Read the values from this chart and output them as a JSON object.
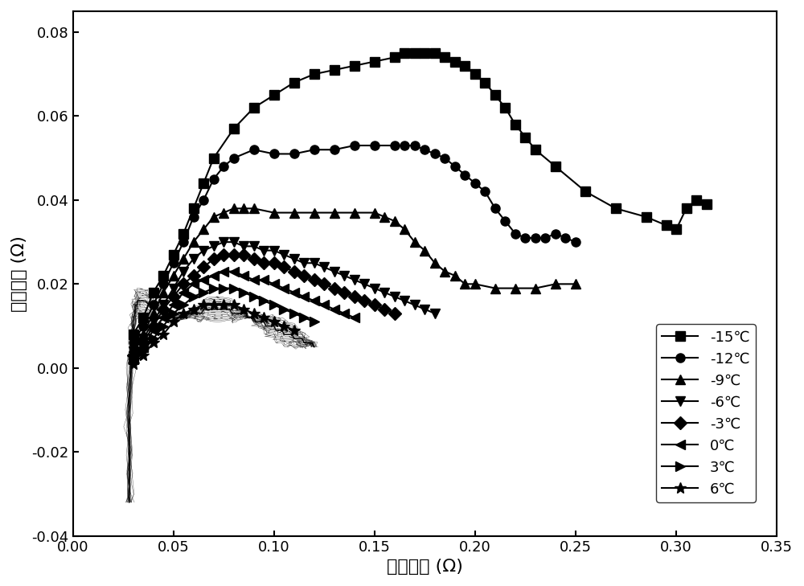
{
  "title": "",
  "xlabel": "阻抗实部 (Ω)",
  "ylabel": "阻抗虚部 (Ω)",
  "xlim": [
    0.0,
    0.35
  ],
  "ylim": [
    -0.04,
    0.085
  ],
  "xticks": [
    0.0,
    0.05,
    0.1,
    0.15,
    0.2,
    0.25,
    0.3,
    0.35
  ],
  "yticks": [
    -0.04,
    -0.02,
    0.0,
    0.02,
    0.04,
    0.06,
    0.08
  ],
  "legend_labels": [
    "-15℃",
    "-12℃",
    "-9℃",
    "-6℃",
    "-3℃",
    "0℃",
    "3℃",
    "6℃"
  ],
  "series": [
    {
      "label": "-15℃",
      "marker": "s",
      "x": [
        0.03,
        0.035,
        0.04,
        0.045,
        0.05,
        0.055,
        0.06,
        0.065,
        0.07,
        0.08,
        0.09,
        0.1,
        0.11,
        0.12,
        0.13,
        0.14,
        0.15,
        0.16,
        0.165,
        0.17,
        0.175,
        0.18,
        0.185,
        0.19,
        0.195,
        0.2,
        0.205,
        0.21,
        0.215,
        0.22,
        0.225,
        0.23,
        0.24,
        0.255,
        0.27,
        0.285,
        0.295,
        0.3,
        0.305,
        0.31,
        0.315
      ],
      "y": [
        0.008,
        0.012,
        0.018,
        0.022,
        0.027,
        0.032,
        0.038,
        0.044,
        0.05,
        0.057,
        0.062,
        0.065,
        0.068,
        0.07,
        0.071,
        0.072,
        0.073,
        0.074,
        0.075,
        0.075,
        0.075,
        0.075,
        0.074,
        0.073,
        0.072,
        0.07,
        0.068,
        0.065,
        0.062,
        0.058,
        0.055,
        0.052,
        0.048,
        0.042,
        0.038,
        0.036,
        0.034,
        0.033,
        0.038,
        0.04,
        0.039
      ]
    },
    {
      "label": "-12℃",
      "marker": "o",
      "x": [
        0.03,
        0.035,
        0.04,
        0.045,
        0.05,
        0.055,
        0.06,
        0.065,
        0.07,
        0.075,
        0.08,
        0.09,
        0.1,
        0.11,
        0.12,
        0.13,
        0.14,
        0.15,
        0.16,
        0.165,
        0.17,
        0.175,
        0.18,
        0.185,
        0.19,
        0.195,
        0.2,
        0.205,
        0.21,
        0.215,
        0.22,
        0.225,
        0.23,
        0.235,
        0.24,
        0.245,
        0.25
      ],
      "y": [
        0.006,
        0.01,
        0.015,
        0.02,
        0.025,
        0.03,
        0.036,
        0.04,
        0.045,
        0.048,
        0.05,
        0.052,
        0.051,
        0.051,
        0.052,
        0.052,
        0.053,
        0.053,
        0.053,
        0.053,
        0.053,
        0.052,
        0.051,
        0.05,
        0.048,
        0.046,
        0.044,
        0.042,
        0.038,
        0.035,
        0.032,
        0.031,
        0.031,
        0.031,
        0.032,
        0.031,
        0.03
      ]
    },
    {
      "label": "-9℃",
      "marker": "^",
      "x": [
        0.03,
        0.035,
        0.04,
        0.045,
        0.05,
        0.055,
        0.06,
        0.065,
        0.07,
        0.075,
        0.08,
        0.085,
        0.09,
        0.1,
        0.11,
        0.12,
        0.13,
        0.14,
        0.15,
        0.155,
        0.16,
        0.165,
        0.17,
        0.175,
        0.18,
        0.185,
        0.19,
        0.195,
        0.2,
        0.21,
        0.22,
        0.23,
        0.24,
        0.25
      ],
      "y": [
        0.005,
        0.008,
        0.013,
        0.018,
        0.022,
        0.026,
        0.03,
        0.033,
        0.036,
        0.037,
        0.038,
        0.038,
        0.038,
        0.037,
        0.037,
        0.037,
        0.037,
        0.037,
        0.037,
        0.036,
        0.035,
        0.033,
        0.03,
        0.028,
        0.025,
        0.023,
        0.022,
        0.02,
        0.02,
        0.019,
        0.019,
        0.019,
        0.02,
        0.02
      ]
    },
    {
      "label": "-6℃",
      "marker": "v",
      "x": [
        0.03,
        0.035,
        0.04,
        0.045,
        0.05,
        0.055,
        0.06,
        0.065,
        0.07,
        0.075,
        0.08,
        0.085,
        0.09,
        0.095,
        0.1,
        0.105,
        0.11,
        0.115,
        0.12,
        0.125,
        0.13,
        0.135,
        0.14,
        0.145,
        0.15,
        0.155,
        0.16,
        0.165,
        0.17,
        0.175,
        0.18
      ],
      "y": [
        0.004,
        0.007,
        0.011,
        0.015,
        0.019,
        0.023,
        0.026,
        0.028,
        0.029,
        0.03,
        0.03,
        0.029,
        0.029,
        0.028,
        0.028,
        0.027,
        0.026,
        0.025,
        0.025,
        0.024,
        0.023,
        0.022,
        0.021,
        0.02,
        0.019,
        0.018,
        0.017,
        0.016,
        0.015,
        0.014,
        0.013
      ]
    },
    {
      "label": "-3℃",
      "marker": "D",
      "x": [
        0.03,
        0.035,
        0.04,
        0.045,
        0.05,
        0.055,
        0.06,
        0.065,
        0.07,
        0.075,
        0.08,
        0.085,
        0.09,
        0.095,
        0.1,
        0.105,
        0.11,
        0.115,
        0.12,
        0.125,
        0.13,
        0.135,
        0.14,
        0.145,
        0.15,
        0.155,
        0.16
      ],
      "y": [
        0.003,
        0.006,
        0.01,
        0.014,
        0.017,
        0.02,
        0.022,
        0.024,
        0.026,
        0.027,
        0.027,
        0.027,
        0.026,
        0.025,
        0.025,
        0.024,
        0.023,
        0.022,
        0.021,
        0.02,
        0.019,
        0.018,
        0.017,
        0.016,
        0.015,
        0.014,
        0.013
      ]
    },
    {
      "label": "0℃",
      "marker": "<",
      "x": [
        0.03,
        0.035,
        0.04,
        0.045,
        0.05,
        0.055,
        0.06,
        0.065,
        0.07,
        0.075,
        0.08,
        0.085,
        0.09,
        0.095,
        0.1,
        0.105,
        0.11,
        0.115,
        0.12,
        0.125,
        0.13,
        0.135,
        0.14
      ],
      "y": [
        0.002,
        0.005,
        0.009,
        0.012,
        0.015,
        0.018,
        0.02,
        0.021,
        0.022,
        0.023,
        0.023,
        0.022,
        0.021,
        0.021,
        0.02,
        0.019,
        0.018,
        0.017,
        0.016,
        0.015,
        0.014,
        0.013,
        0.012
      ]
    },
    {
      "label": "3℃",
      "marker": ">",
      "x": [
        0.03,
        0.035,
        0.04,
        0.045,
        0.05,
        0.055,
        0.06,
        0.065,
        0.07,
        0.075,
        0.08,
        0.085,
        0.09,
        0.095,
        0.1,
        0.105,
        0.11,
        0.115,
        0.12
      ],
      "y": [
        0.002,
        0.004,
        0.007,
        0.01,
        0.013,
        0.015,
        0.017,
        0.018,
        0.019,
        0.019,
        0.019,
        0.018,
        0.017,
        0.016,
        0.015,
        0.014,
        0.013,
        0.012,
        0.011
      ]
    },
    {
      "label": "6℃",
      "marker": "*",
      "x": [
        0.03,
        0.035,
        0.04,
        0.045,
        0.05,
        0.055,
        0.06,
        0.065,
        0.07,
        0.075,
        0.08,
        0.085,
        0.09,
        0.095,
        0.1,
        0.105,
        0.11
      ],
      "y": [
        0.001,
        0.003,
        0.006,
        0.008,
        0.011,
        0.013,
        0.014,
        0.015,
        0.015,
        0.015,
        0.015,
        0.014,
        0.013,
        0.012,
        0.011,
        0.01,
        0.009
      ]
    }
  ],
  "dense_series": {
    "x": [
      0.028,
      0.028,
      0.028,
      0.028,
      0.028,
      0.028,
      0.028,
      0.029,
      0.029,
      0.029,
      0.03,
      0.03,
      0.03,
      0.031,
      0.031,
      0.031,
      0.032,
      0.032,
      0.033,
      0.034,
      0.035,
      0.036,
      0.038,
      0.04,
      0.042,
      0.044,
      0.046,
      0.048,
      0.05,
      0.052,
      0.054,
      0.055,
      0.056,
      0.057,
      0.058,
      0.059,
      0.06,
      0.061,
      0.062,
      0.063,
      0.064,
      0.065,
      0.066,
      0.067,
      0.068,
      0.069,
      0.07,
      0.071,
      0.072,
      0.073,
      0.074,
      0.075,
      0.076,
      0.077,
      0.078,
      0.079,
      0.08,
      0.081,
      0.082,
      0.083,
      0.084,
      0.085,
      0.086,
      0.087,
      0.088,
      0.089,
      0.09,
      0.091,
      0.092,
      0.093,
      0.094,
      0.095,
      0.096,
      0.097,
      0.098,
      0.099,
      0.1,
      0.101,
      0.102,
      0.103,
      0.104,
      0.105,
      0.106,
      0.107,
      0.108,
      0.109,
      0.11,
      0.111,
      0.112,
      0.113,
      0.114,
      0.115,
      0.116,
      0.117,
      0.118,
      0.119,
      0.12
    ],
    "y": [
      -0.032,
      -0.03,
      -0.025,
      -0.02,
      -0.015,
      -0.01,
      -0.005,
      0.0,
      0.003,
      0.006,
      0.008,
      0.01,
      0.012,
      0.013,
      0.014,
      0.015,
      0.015,
      0.016,
      0.016,
      0.016,
      0.016,
      0.016,
      0.015,
      0.015,
      0.014,
      0.013,
      0.013,
      0.012,
      0.012,
      0.012,
      0.012,
      0.012,
      0.012,
      0.013,
      0.013,
      0.013,
      0.013,
      0.013,
      0.013,
      0.013,
      0.013,
      0.014,
      0.014,
      0.014,
      0.014,
      0.014,
      0.014,
      0.014,
      0.014,
      0.014,
      0.014,
      0.014,
      0.014,
      0.014,
      0.014,
      0.013,
      0.013,
      0.013,
      0.013,
      0.013,
      0.013,
      0.013,
      0.013,
      0.012,
      0.012,
      0.012,
      0.012,
      0.011,
      0.011,
      0.011,
      0.011,
      0.011,
      0.01,
      0.01,
      0.01,
      0.01,
      0.01,
      0.009,
      0.009,
      0.009,
      0.009,
      0.008,
      0.008,
      0.008,
      0.008,
      0.008,
      0.007,
      0.007,
      0.007,
      0.007,
      0.007,
      0.006,
      0.006,
      0.006,
      0.006,
      0.006,
      0.005
    ]
  }
}
